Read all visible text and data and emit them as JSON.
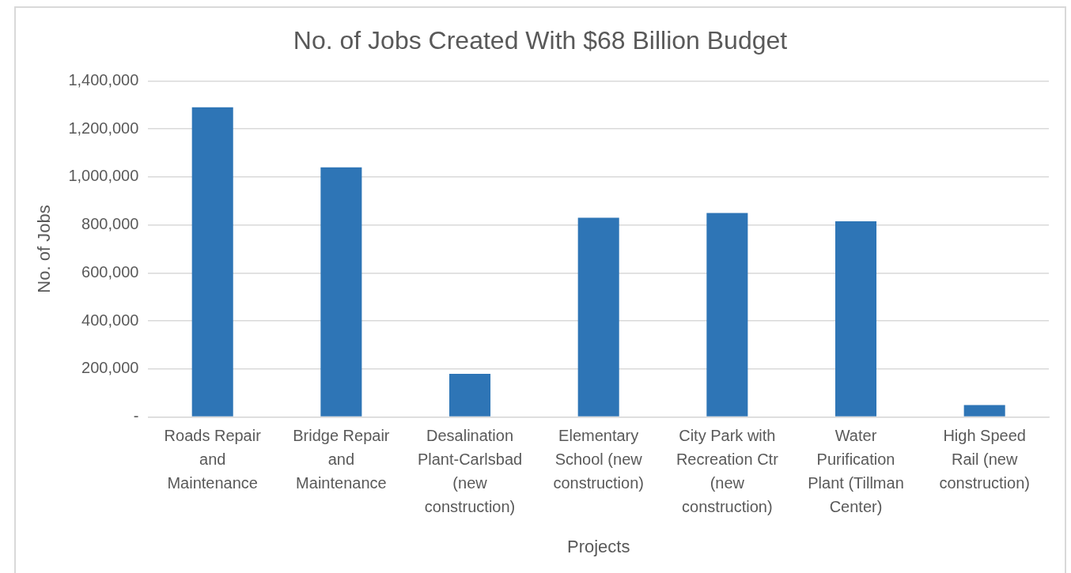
{
  "chart_data": {
    "type": "bar",
    "title": "No. of Jobs Created With $68 Billion Budget",
    "xlabel": "Projects",
    "ylabel": "No. of Jobs",
    "categories": [
      "Roads Repair and Maintenance",
      "Bridge Repair and Maintenance",
      "Desalination Plant-Carlsbad (new construction)",
      "Elementary School (new construction)",
      "City Park with Recreation Ctr (new construction)",
      "Water Purification Plant (Tillman Center)",
      "High Speed Rail (new construction)"
    ],
    "values": [
      1290000,
      1040000,
      180000,
      830000,
      850000,
      815000,
      50000
    ],
    "color": "#2e75b6",
    "ylim": [
      0,
      1400000
    ],
    "yticks": [
      {
        "value": 0,
        "label": "-"
      },
      {
        "value": 200000,
        "label": "200,000"
      },
      {
        "value": 400000,
        "label": "400,000"
      },
      {
        "value": 600000,
        "label": "600,000"
      },
      {
        "value": 800000,
        "label": "800,000"
      },
      {
        "value": 1000000,
        "label": "1,000,000"
      },
      {
        "value": 1200000,
        "label": "1,200,000"
      },
      {
        "value": 1400000,
        "label": "1,400,000"
      }
    ],
    "grid": "y"
  }
}
